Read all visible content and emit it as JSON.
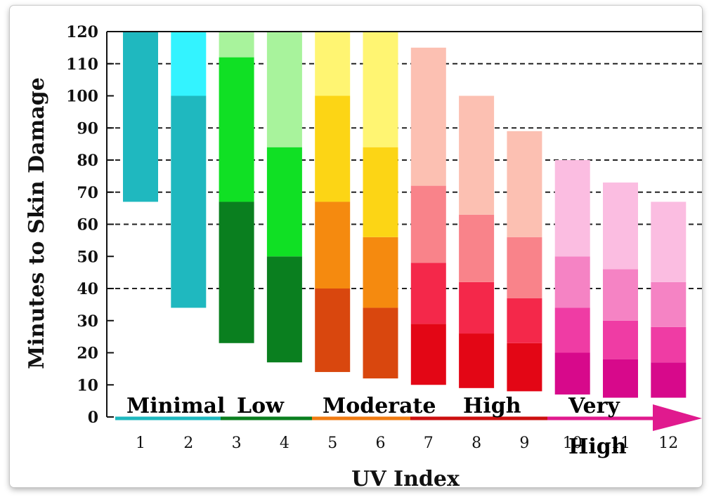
{
  "chart_data": {
    "type": "bar",
    "title": "",
    "xlabel": "UV Index",
    "ylabel": "Minutes to Skin Damage",
    "ylim": [
      0,
      120
    ],
    "yticks": [
      0,
      10,
      20,
      30,
      40,
      50,
      60,
      70,
      80,
      90,
      100,
      110,
      120
    ],
    "grid": "dashed horizontal at 40, 60, 70, 80, 90, 110",
    "categories": [
      "1",
      "2",
      "3",
      "4",
      "5",
      "6",
      "7",
      "8",
      "9",
      "10",
      "11",
      "12"
    ],
    "bars": [
      {
        "x": "1",
        "segments": [
          {
            "from": 67,
            "to": 120,
            "color": "#1fb8bf"
          }
        ]
      },
      {
        "x": "2",
        "segments": [
          {
            "from": 34,
            "to": 100,
            "color": "#1fb8bf"
          },
          {
            "from": 100,
            "to": 120,
            "color": "#33f3ff"
          }
        ]
      },
      {
        "x": "3",
        "segments": [
          {
            "from": 23,
            "to": 67,
            "color": "#0a7f1f"
          },
          {
            "from": 67,
            "to": 112,
            "color": "#10e024"
          },
          {
            "from": 112,
            "to": 120,
            "color": "#a8f39c"
          }
        ]
      },
      {
        "x": "4",
        "segments": [
          {
            "from": 17,
            "to": 50,
            "color": "#0a7f1f"
          },
          {
            "from": 50,
            "to": 84,
            "color": "#10e024"
          },
          {
            "from": 84,
            "to": 120,
            "color": "#a8f39c"
          }
        ]
      },
      {
        "x": "5",
        "segments": [
          {
            "from": 14,
            "to": 40,
            "color": "#d9470e"
          },
          {
            "from": 40,
            "to": 67,
            "color": "#f58a0f"
          },
          {
            "from": 67,
            "to": 100,
            "color": "#fcd515"
          },
          {
            "from": 100,
            "to": 120,
            "color": "#fff572"
          }
        ]
      },
      {
        "x": "6",
        "segments": [
          {
            "from": 12,
            "to": 34,
            "color": "#d9470e"
          },
          {
            "from": 34,
            "to": 56,
            "color": "#f58a0f"
          },
          {
            "from": 56,
            "to": 84,
            "color": "#fcd515"
          },
          {
            "from": 84,
            "to": 120,
            "color": "#fff572"
          }
        ]
      },
      {
        "x": "7",
        "segments": [
          {
            "from": 10,
            "to": 29,
            "color": "#e30615"
          },
          {
            "from": 29,
            "to": 48,
            "color": "#f4284a"
          },
          {
            "from": 48,
            "to": 72,
            "color": "#f9838a"
          },
          {
            "from": 72,
            "to": 115,
            "color": "#fcc0b2"
          }
        ]
      },
      {
        "x": "8",
        "segments": [
          {
            "from": 9,
            "to": 26,
            "color": "#e30615"
          },
          {
            "from": 26,
            "to": 42,
            "color": "#f4284a"
          },
          {
            "from": 42,
            "to": 63,
            "color": "#f9838a"
          },
          {
            "from": 63,
            "to": 100,
            "color": "#fcc0b2"
          }
        ]
      },
      {
        "x": "9",
        "segments": [
          {
            "from": 8,
            "to": 23,
            "color": "#e30615"
          },
          {
            "from": 23,
            "to": 37,
            "color": "#f4284a"
          },
          {
            "from": 37,
            "to": 56,
            "color": "#f9838a"
          },
          {
            "from": 56,
            "to": 89,
            "color": "#fcc0b2"
          }
        ]
      },
      {
        "x": "10",
        "segments": [
          {
            "from": 7,
            "to": 20,
            "color": "#d7098b"
          },
          {
            "from": 20,
            "to": 34,
            "color": "#ef3ca4"
          },
          {
            "from": 34,
            "to": 50,
            "color": "#f583c4"
          },
          {
            "from": 50,
            "to": 80,
            "color": "#fbbde1"
          }
        ]
      },
      {
        "x": "11",
        "segments": [
          {
            "from": 6,
            "to": 18,
            "color": "#d7098b"
          },
          {
            "from": 18,
            "to": 30,
            "color": "#ef3ca4"
          },
          {
            "from": 30,
            "to": 46,
            "color": "#f583c4"
          },
          {
            "from": 46,
            "to": 73,
            "color": "#fbbde1"
          }
        ]
      },
      {
        "x": "12",
        "segments": [
          {
            "from": 6,
            "to": 17,
            "color": "#d7098b"
          },
          {
            "from": 17,
            "to": 28,
            "color": "#ef3ca4"
          },
          {
            "from": 28,
            "to": 42,
            "color": "#f583c4"
          },
          {
            "from": 42,
            "to": 67,
            "color": "#fbbde1"
          }
        ]
      }
    ],
    "uv_categories": [
      {
        "label": "Minimal",
        "color": "#1fb8bf"
      },
      {
        "label": "Low",
        "color": "#0a7f1f"
      },
      {
        "label": "Moderate",
        "color": "#f07b12"
      },
      {
        "label": "High",
        "color": "#cc1010"
      },
      {
        "label": "Very",
        "color": "#cc1a8a"
      },
      {
        "label": "High",
        "color": "#cc1a8a"
      }
    ]
  }
}
